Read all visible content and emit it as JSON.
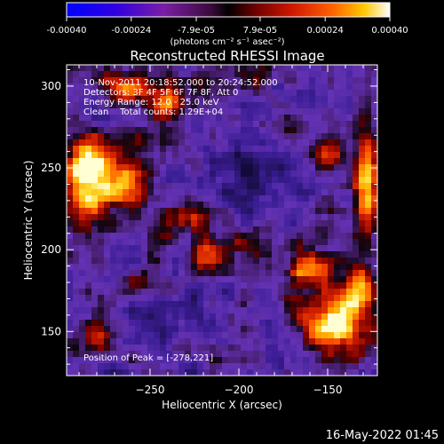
{
  "colorbar": {
    "tick_labels": [
      "-0.00040",
      "-0.00024",
      "-7.9e-05",
      "7.9e-05",
      "0.00024",
      "0.00040"
    ],
    "tick_values": [
      -0.0004,
      -0.00024,
      -7.9e-05,
      7.9e-05,
      0.00024,
      0.0004
    ],
    "range": [
      -0.0004,
      0.0004
    ],
    "unit_label": "(photons cm⁻² s⁻¹ asec⁻²)"
  },
  "image_colors": {
    "background": "#000000",
    "frame": "#ffffff",
    "colormap": [
      "#0000ff",
      "#4000c8",
      "#7a1ea6",
      "#6f2fb0",
      "#5a2a9a",
      "#1a0a20",
      "#000000",
      "#3a0000",
      "#8a0000",
      "#c81a00",
      "#ff5000",
      "#ff9a00",
      "#ffd200",
      "#ffffff"
    ]
  },
  "chart_data": {
    "type": "heatmap",
    "title": "Reconstructed RHESSI Image",
    "xlabel": "Heliocentric X (arcsec)",
    "ylabel": "Heliocentric Y (arcsec)",
    "xlim": [
      -297,
      -122
    ],
    "ylim": [
      123,
      313
    ],
    "x_ticks": [
      -250,
      -200,
      -150
    ],
    "x_tick_labels": [
      "−250",
      "−200",
      "−150"
    ],
    "y_ticks": [
      150,
      200,
      250,
      300
    ],
    "y_tick_labels": [
      "150",
      "200",
      "250",
      "300"
    ],
    "annotations": [
      "10-Nov-2011 20:18:52.000 to 20:24:52.000",
      "Detectors: 3F 4F 5F 6F 7F 8F, Att 0",
      "Energy Range: 12.0 - 25.0 keV",
      "Clean    Total counts: 1.29E+04"
    ],
    "peak_label": "Position of Peak = [-278,221]",
    "peak": [
      -278,
      221
    ],
    "bright_sources": [
      {
        "x": -285,
        "y": 245,
        "level": 1.0,
        "sx": 10,
        "sy": 16
      },
      {
        "x": -262,
        "y": 240,
        "level": 0.55,
        "sx": 8,
        "sy": 10
      },
      {
        "x": -240,
        "y": 290,
        "level": 0.7,
        "sx": 7,
        "sy": 9
      },
      {
        "x": -262,
        "y": 300,
        "level": 0.6,
        "sx": 9,
        "sy": 7
      },
      {
        "x": -225,
        "y": 220,
        "level": 0.5,
        "sx": 14,
        "sy": 6
      },
      {
        "x": -215,
        "y": 195,
        "level": 0.6,
        "sx": 8,
        "sy": 8
      },
      {
        "x": -195,
        "y": 205,
        "level": 0.35,
        "sx": 8,
        "sy": 6
      },
      {
        "x": -160,
        "y": 190,
        "level": 0.6,
        "sx": 8,
        "sy": 9
      },
      {
        "x": -145,
        "y": 155,
        "level": 0.95,
        "sx": 13,
        "sy": 12
      },
      {
        "x": -132,
        "y": 175,
        "level": 0.7,
        "sx": 6,
        "sy": 8
      },
      {
        "x": -128,
        "y": 240,
        "level": 0.85,
        "sx": 5,
        "sy": 22
      },
      {
        "x": -150,
        "y": 258,
        "level": 0.6,
        "sx": 6,
        "sy": 6
      },
      {
        "x": -200,
        "y": 300,
        "level": 0.3,
        "sx": 10,
        "sy": 6
      },
      {
        "x": -280,
        "y": 150,
        "level": 0.35,
        "sx": 10,
        "sy": 8
      },
      {
        "x": -250,
        "y": 180,
        "level": 0.3,
        "sx": 8,
        "sy": 6
      },
      {
        "x": -175,
        "y": 275,
        "level": 0.3,
        "sx": 8,
        "sy": 6
      }
    ],
    "dark_regions": [
      {
        "x": -195,
        "y": 245,
        "level": 0.8,
        "sx": 22,
        "sy": 22
      },
      {
        "x": -240,
        "y": 160,
        "level": 0.6,
        "sx": 20,
        "sy": 16
      },
      {
        "x": -175,
        "y": 140,
        "level": 0.5,
        "sx": 12,
        "sy": 10
      },
      {
        "x": -160,
        "y": 290,
        "level": 0.5,
        "sx": 10,
        "sy": 14
      }
    ]
  },
  "footer": {
    "datetime": "16-May-2022 01:45"
  }
}
